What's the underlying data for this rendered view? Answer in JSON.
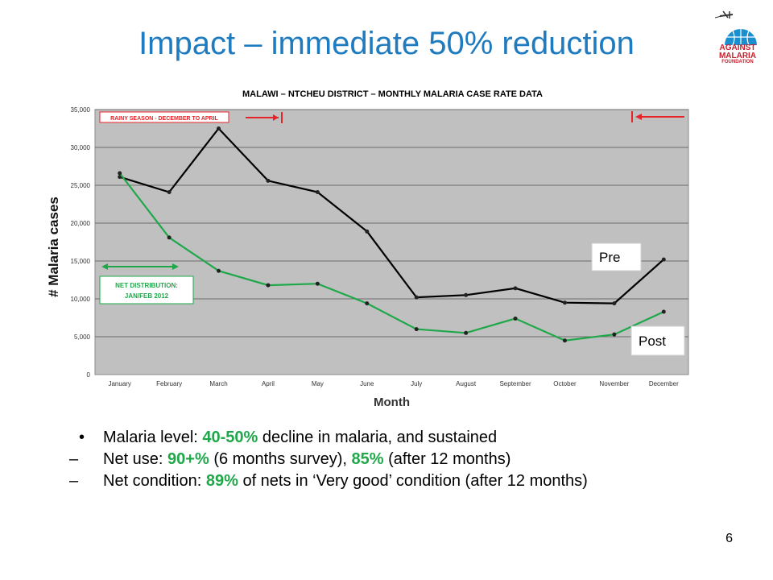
{
  "slide": {
    "title": "Impact – immediate 50% reduction",
    "page_number": "6",
    "logo": {
      "line1": "AGAINST",
      "line2": "MALARIA",
      "line3": "FOUNDATION"
    }
  },
  "chart_data": {
    "type": "line",
    "title": "MALAWI – NTCHEU DISTRICT – MONTHLY MALARIA CASE RATE DATA",
    "xlabel": "Month",
    "ylabel": "# Malaria cases",
    "ylim": [
      0,
      35000
    ],
    "yticks": [
      0,
      5000,
      10000,
      15000,
      20000,
      25000,
      30000,
      35000
    ],
    "ytick_labels": [
      "0",
      "5,000",
      "10,000",
      "15,000",
      "20,000",
      "25,000",
      "30,000",
      "35,000"
    ],
    "grid": true,
    "categories": [
      "January",
      "February",
      "March",
      "April",
      "May",
      "June",
      "July",
      "August",
      "September",
      "October",
      "November",
      "December"
    ],
    "series": [
      {
        "name": "Pre",
        "color": "#000000",
        "values": [
          26100,
          24100,
          32500,
          25600,
          24100,
          18900,
          10200,
          10500,
          11400,
          9500,
          9400,
          15200
        ]
      },
      {
        "name": "Post",
        "color": "#1fa84a",
        "values": [
          26600,
          18100,
          13700,
          11800,
          12000,
          9400,
          6000,
          5500,
          7400,
          4500,
          5300,
          8300
        ]
      }
    ],
    "annotations": {
      "rainy_season": "RAINY SEASON - DECEMBER TO APRIL",
      "net_distribution_line1": "NET DISTRIBUTION:",
      "net_distribution_line2": "JAN/FEB 2012"
    },
    "legend_labels": {
      "pre": "Pre",
      "post": "Post"
    }
  },
  "bullets": [
    {
      "marker": "•",
      "pre": "Malaria level: ",
      "hl": "40-50%",
      "post": " decline in malaria, and sustained"
    },
    {
      "marker": "–",
      "pre": "Net use: ",
      "hl": "90+%",
      "mid": " (6 months survey), ",
      "hl2": "85%",
      "post": " (after 12 months)"
    },
    {
      "marker": "–",
      "pre": "Net condition: ",
      "hl": "89%",
      "post": " of nets in ‘Very good’ condition (after 12 months)"
    }
  ],
  "colors": {
    "title": "#1f7bbf",
    "plot_bg": "#c0c0c0",
    "post": "#1fa84a",
    "pre": "#000000",
    "annotation_red": "#e8232a"
  }
}
